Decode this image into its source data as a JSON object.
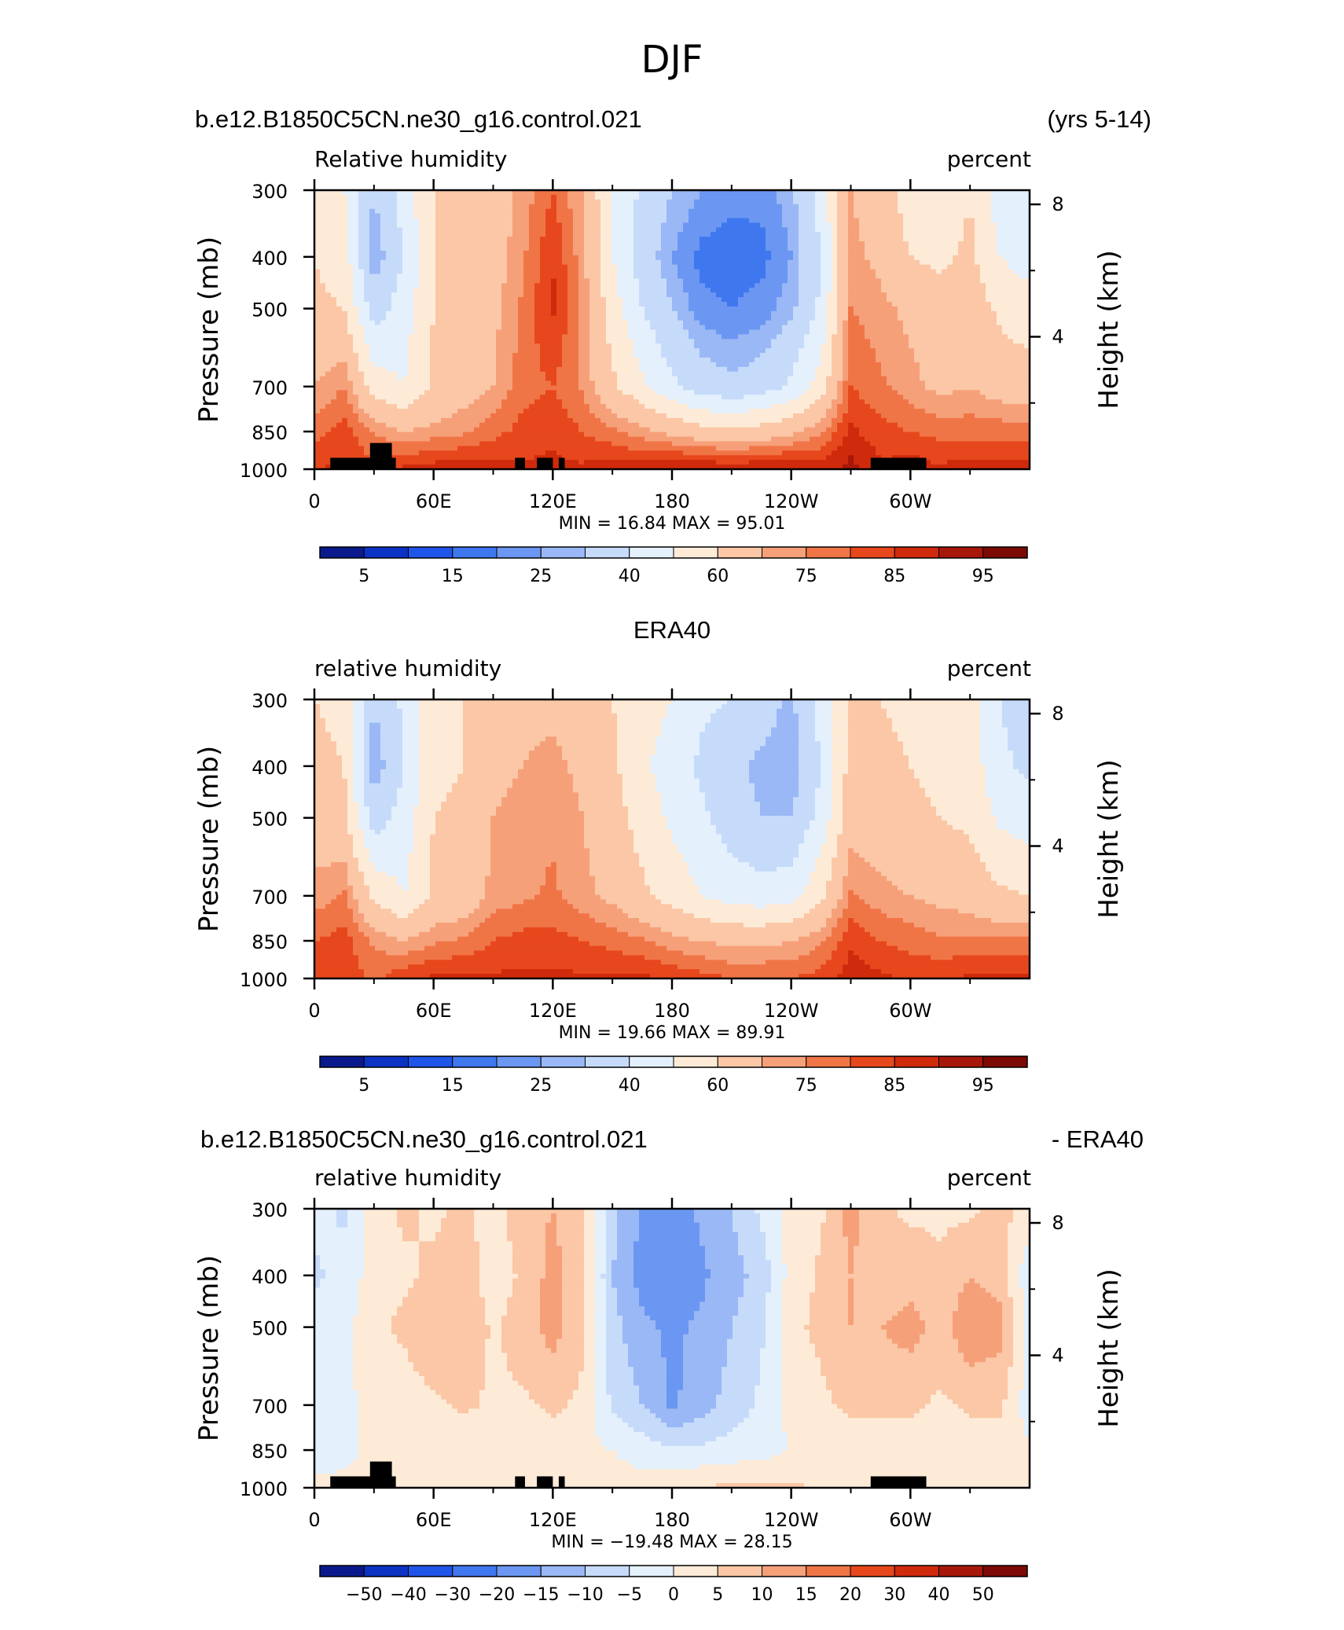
{
  "figure_title": "DJF",
  "colors": {
    "palette": [
      "#0a1a8c",
      "#0c33c4",
      "#1f55e8",
      "#3f77ef",
      "#6b97f2",
      "#9ab8f5",
      "#c6dbfa",
      "#e4f0fc",
      "#fdebd8",
      "#fbc7a6",
      "#f6a07a",
      "#f07546",
      "#e7471c",
      "#cf2a0c",
      "#a8180a",
      "#7d0a04"
    ]
  },
  "panels": [
    {
      "header_left": "b.e12.B1850C5CN.ne30_g16.control.021",
      "header_right": "(yrs 5-14)",
      "header_center": "",
      "left_string": "Relative humidity",
      "right_string": "percent",
      "minmax": "MIN =   16.84   MAX =   95.01",
      "cb_labels": [
        "5",
        "15",
        "25",
        "40",
        "60",
        "75",
        "85",
        "95"
      ]
    },
    {
      "header_left": "",
      "header_right": "",
      "header_center": "ERA40",
      "left_string": "relative humidity",
      "right_string": "percent",
      "minmax": "MIN =   19.66   MAX =   89.91",
      "cb_labels": [
        "5",
        "15",
        "25",
        "40",
        "60",
        "75",
        "85",
        "95"
      ]
    },
    {
      "header_left": "b.e12.B1850C5CN.ne30_g16.control.021",
      "header_right": "- ERA40",
      "header_center": "",
      "left_string": "relative humidity",
      "right_string": "percent",
      "minmax": "MIN = −19.48   MAX =   28.15",
      "cb_labels": [
        "−50",
        "−40",
        "−30",
        "−20",
        "−15",
        "−10",
        "−5",
        "0",
        "5",
        "10",
        "15",
        "20",
        "30",
        "40",
        "50"
      ]
    }
  ],
  "axes": {
    "ylabel": "Pressure (mb)",
    "y2label": "Height (km)",
    "y_ticks": [
      "300",
      "400",
      "500",
      "700",
      "850",
      "1000"
    ],
    "x_ticks": [
      "0",
      "60E",
      "120E",
      "180",
      "120W",
      "60W"
    ],
    "y2_ticks": [
      "8",
      "4"
    ]
  },
  "chart_data": [
    {
      "type": "heatmap",
      "title": "b.e12.B1850C5CN.ne30_g16.control.021 (yrs 5-14)",
      "xlabel": "",
      "ylabel": "Pressure (mb)",
      "x": [
        0,
        15,
        30,
        45,
        60,
        75,
        90,
        105,
        120,
        135,
        150,
        165,
        180,
        195,
        210,
        225,
        240,
        255,
        270,
        285,
        300,
        315,
        330,
        345,
        360
      ],
      "y": [
        300,
        400,
        500,
        700,
        850,
        1000
      ],
      "levels": [
        5,
        10,
        15,
        20,
        25,
        30,
        40,
        50,
        60,
        70,
        75,
        80,
        85,
        90,
        95
      ],
      "values": [
        [
          55,
          50,
          30,
          45,
          60,
          62,
          65,
          72,
          80,
          70,
          50,
          38,
          30,
          25,
          22,
          22,
          28,
          45,
          70,
          65,
          55,
          50,
          60,
          45,
          40
        ],
        [
          60,
          55,
          25,
          40,
          60,
          62,
          66,
          74,
          85,
          72,
          50,
          35,
          25,
          18,
          17,
          18,
          25,
          40,
          72,
          68,
          60,
          58,
          62,
          50,
          45
        ],
        [
          62,
          60,
          35,
          45,
          60,
          64,
          68,
          76,
          86,
          74,
          55,
          40,
          30,
          22,
          20,
          22,
          28,
          42,
          75,
          72,
          68,
          64,
          66,
          58,
          55
        ],
        [
          70,
          75,
          55,
          50,
          62,
          66,
          70,
          78,
          80,
          74,
          62,
          52,
          42,
          35,
          32,
          35,
          42,
          55,
          80,
          76,
          72,
          68,
          70,
          66,
          64
        ],
        [
          78,
          82,
          75,
          70,
          72,
          74,
          78,
          82,
          84,
          80,
          76,
          72,
          68,
          64,
          62,
          64,
          68,
          74,
          86,
          82,
          80,
          78,
          78,
          78,
          78
        ],
        [
          85,
          86,
          80,
          86,
          88,
          88,
          88,
          86,
          86,
          86,
          88,
          88,
          90,
          90,
          90,
          90,
          90,
          88,
          92,
          86,
          88,
          86,
          88,
          88,
          88
        ]
      ]
    },
    {
      "type": "heatmap",
      "title": "ERA40",
      "xlabel": "",
      "ylabel": "Pressure (mb)",
      "x": [
        0,
        15,
        30,
        45,
        60,
        75,
        90,
        105,
        120,
        135,
        150,
        165,
        180,
        195,
        210,
        225,
        240,
        255,
        270,
        285,
        300,
        315,
        330,
        345,
        360
      ],
      "y": [
        300,
        400,
        500,
        700,
        850,
        1000
      ],
      "levels": [
        5,
        10,
        15,
        20,
        25,
        30,
        40,
        50,
        60,
        70,
        75,
        80,
        85,
        90,
        95
      ],
      "values": [
        [
          60,
          58,
          30,
          42,
          58,
          60,
          66,
          68,
          68,
          66,
          60,
          55,
          50,
          42,
          40,
          35,
          28,
          45,
          62,
          60,
          58,
          55,
          55,
          40,
          35
        ],
        [
          62,
          60,
          25,
          40,
          58,
          60,
          68,
          70,
          72,
          68,
          62,
          52,
          45,
          38,
          32,
          28,
          25,
          40,
          64,
          62,
          60,
          58,
          56,
          42,
          38
        ],
        [
          66,
          62,
          35,
          44,
          60,
          62,
          70,
          72,
          74,
          70,
          64,
          56,
          48,
          42,
          35,
          30,
          30,
          44,
          66,
          64,
          62,
          60,
          58,
          48,
          45
        ],
        [
          72,
          76,
          58,
          50,
          62,
          64,
          72,
          74,
          76,
          72,
          68,
          62,
          56,
          50,
          46,
          44,
          46,
          58,
          76,
          72,
          70,
          68,
          66,
          62,
          60
        ],
        [
          80,
          82,
          74,
          70,
          74,
          76,
          80,
          82,
          82,
          80,
          78,
          76,
          72,
          70,
          68,
          68,
          70,
          74,
          84,
          80,
          78,
          76,
          76,
          76,
          76
        ],
        [
          84,
          84,
          78,
          84,
          86,
          86,
          86,
          86,
          86,
          86,
          86,
          86,
          84,
          82,
          80,
          80,
          80,
          82,
          88,
          86,
          84,
          84,
          86,
          86,
          86
        ]
      ]
    },
    {
      "type": "heatmap",
      "title": "b.e12.B1850C5CN.ne30_g16.control.021 - ERA40",
      "xlabel": "",
      "ylabel": "Pressure (mb)",
      "x": [
        0,
        15,
        30,
        45,
        60,
        75,
        90,
        105,
        120,
        135,
        150,
        165,
        180,
        195,
        210,
        225,
        240,
        255,
        270,
        285,
        300,
        315,
        330,
        345,
        360
      ],
      "y": [
        300,
        400,
        500,
        700,
        850,
        1000
      ],
      "levels": [
        -50,
        -40,
        -30,
        -20,
        -15,
        -10,
        -5,
        0,
        5,
        10,
        15,
        20,
        30,
        40,
        50
      ],
      "values": [
        [
          -3,
          -6,
          2,
          6,
          4,
          6,
          3,
          8,
          10,
          6,
          -8,
          -16,
          -18,
          -14,
          -10,
          -4,
          2,
          4,
          12,
          6,
          4,
          4,
          4,
          6,
          4
        ],
        [
          -6,
          -3,
          2,
          4,
          6,
          8,
          2,
          6,
          12,
          6,
          -10,
          -17,
          -19,
          -16,
          -12,
          -8,
          2,
          6,
          10,
          6,
          8,
          6,
          10,
          8,
          -4
        ],
        [
          -3,
          -2,
          4,
          6,
          10,
          10,
          4,
          8,
          12,
          6,
          -8,
          -14,
          -16,
          -14,
          -10,
          -6,
          4,
          6,
          10,
          10,
          12,
          8,
          14,
          12,
          -2
        ],
        [
          -4,
          -2,
          3,
          2,
          4,
          6,
          4,
          4,
          6,
          4,
          -6,
          -10,
          -16,
          -12,
          -8,
          -4,
          2,
          4,
          6,
          6,
          6,
          4,
          6,
          6,
          -3
        ],
        [
          -2,
          -1,
          1,
          0,
          1,
          2,
          1,
          1,
          2,
          1,
          0,
          -2,
          -4,
          -4,
          -3,
          -2,
          0,
          1,
          2,
          2,
          2,
          2,
          2,
          2,
          1
        ],
        [
          1,
          1,
          0,
          1,
          2,
          2,
          2,
          1,
          1,
          1,
          2,
          2,
          4,
          5,
          6,
          6,
          6,
          4,
          4,
          2,
          3,
          2,
          2,
          2,
          2
        ]
      ]
    }
  ]
}
